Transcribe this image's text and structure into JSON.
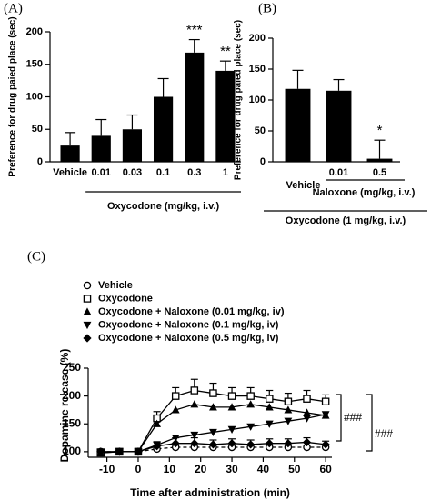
{
  "chart_data": [
    {
      "type": "bar",
      "panel": "(A)",
      "ylabel": "Preference for drug paied place (sec)",
      "xlabel": "Oxycodone (mg/kg, i.v.)",
      "categories": [
        "Vehicle",
        "0.01",
        "0.03",
        "0.1",
        "0.3",
        "1"
      ],
      "values": [
        25,
        40,
        50,
        100,
        168,
        140
      ],
      "errors": [
        20,
        25,
        22,
        28,
        20,
        15
      ],
      "significance": [
        null,
        null,
        null,
        null,
        "***",
        "**"
      ],
      "color": "#000000",
      "ylim": [
        0,
        200
      ],
      "yticks": [
        0,
        50,
        100,
        150,
        200
      ]
    },
    {
      "type": "bar",
      "panel": "(B)",
      "ylabel": "Preference for drug paied place (sec)",
      "group_labels": [
        "Naloxone (mg/kg, i.v.)",
        "Oxycodone (1 mg/kg, i.v.)"
      ],
      "categories": [
        "Vehicle",
        "0.01",
        "0.5"
      ],
      "values": [
        118,
        115,
        5
      ],
      "errors": [
        30,
        18,
        30
      ],
      "significance": [
        null,
        null,
        "*"
      ],
      "color": "#000000",
      "ylim": [
        0,
        200
      ],
      "yticks": [
        0,
        50,
        100,
        150,
        200
      ]
    },
    {
      "type": "line",
      "panel": "(C)",
      "ylabel": "Dopamine release (%)",
      "xlabel": "Time after administration (min)",
      "x": [
        -12,
        -6,
        0,
        6,
        12,
        18,
        24,
        30,
        36,
        42,
        48,
        54,
        60
      ],
      "series": [
        {
          "name": "Vehicle",
          "color": "#000000",
          "marker": "circle-open",
          "dashed": true,
          "values": [
            100,
            100,
            100,
            105,
            108,
            108,
            108,
            108,
            108,
            108,
            108,
            108,
            108
          ]
        },
        {
          "name": "Oxycodone",
          "color": "#000000",
          "marker": "square-open",
          "dashed": false,
          "values": [
            98,
            100,
            100,
            160,
            200,
            210,
            205,
            200,
            200,
            195,
            190,
            195,
            190
          ],
          "errors": [
            3,
            3,
            3,
            12,
            15,
            20,
            18,
            15,
            15,
            15,
            15,
            15,
            12
          ]
        },
        {
          "name": "Oxycodone + Naloxone (0.01 mg/kg, iv)",
          "color": "#000000",
          "marker": "triangle-up",
          "dashed": false,
          "values": [
            98,
            100,
            100,
            150,
            175,
            185,
            180,
            180,
            185,
            180,
            175,
            170,
            165
          ]
        },
        {
          "name": "Oxycodone + Naloxone (0.1 mg/kg, iv)",
          "color": "#000000",
          "marker": "triangle-down",
          "dashed": false,
          "values": [
            100,
            100,
            100,
            112,
            125,
            130,
            135,
            140,
            145,
            150,
            155,
            160,
            167
          ]
        },
        {
          "name": "Oxycodone + Naloxone (0.5 mg/kg, iv)",
          "color": "#000000",
          "marker": "diamond",
          "dashed": false,
          "values": [
            100,
            100,
            100,
            110,
            115,
            115,
            113,
            115,
            113,
            115,
            115,
            117,
            113
          ],
          "errors": [
            2,
            2,
            2,
            8,
            10,
            10,
            8,
            8,
            8,
            8,
            8,
            8,
            6
          ]
        }
      ],
      "annotations": [
        "###",
        "###"
      ],
      "xlim": [
        -16,
        62
      ],
      "xticks": [
        -10,
        0,
        10,
        20,
        30,
        40,
        50,
        60
      ],
      "ylim": [
        90,
        250
      ],
      "yticks": [
        100,
        150,
        200,
        250
      ]
    }
  ]
}
